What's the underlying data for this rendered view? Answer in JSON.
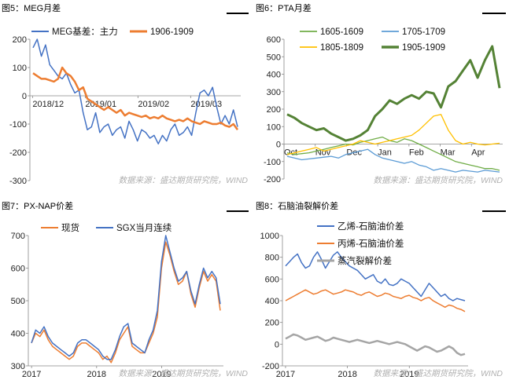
{
  "source_text": "数据来源：盛达期货研究院，WIND",
  "panels": [
    {
      "title": "图5：MEG月差",
      "chart_data": {
        "type": "line",
        "ylim": [
          -300,
          200
        ],
        "yticks": [
          "200",
          "100",
          "0",
          "-100",
          "-200",
          "-300"
        ],
        "xticks": [
          "2018/12",
          "2019/01",
          "2019/02",
          "2019/03"
        ],
        "legend": "top",
        "series": [
          {
            "name": "MEG基差：主力",
            "color": "#4472c4",
            "values": [
              170,
              200,
              140,
              180,
              110,
              90,
              70,
              60,
              80,
              40,
              10,
              20,
              -60,
              -120,
              -110,
              -60,
              -130,
              -110,
              -100,
              -140,
              -120,
              -110,
              -150,
              -90,
              -120,
              -160,
              -120,
              -130,
              -150,
              -140,
              -170,
              -140,
              -160,
              -120,
              -100,
              -140,
              -130,
              -110,
              -140,
              -60,
              10,
              20,
              0,
              30,
              -40,
              -100,
              -70,
              -100,
              -50,
              -110
            ]
          },
          {
            "name": "1906-1909",
            "color": "#ed7d31",
            "values": [
              80,
              70,
              60,
              60,
              55,
              50,
              60,
              100,
              80,
              70,
              50,
              20,
              30,
              -10,
              -20,
              -30,
              -40,
              -50,
              -40,
              -50,
              -60,
              -50,
              -70,
              -60,
              -65,
              -70,
              -75,
              -70,
              -80,
              -75,
              -80,
              -70,
              -80,
              -85,
              -90,
              -85,
              -90,
              -80,
              -90,
              -95,
              -100,
              -90,
              -95,
              -100,
              -100,
              -95,
              -105,
              -110,
              -100,
              -120
            ]
          }
        ]
      }
    },
    {
      "title": "图6：PTA月差",
      "chart_data": {
        "type": "line",
        "ylim": [
          -200,
          600
        ],
        "yticks": [
          "600",
          "500",
          "400",
          "300",
          "200",
          "100",
          "0",
          "-100",
          "-200"
        ],
        "xticks": [
          "Oct",
          "Nov",
          "Dec",
          "Jan",
          "Feb",
          "Mar",
          "Apr"
        ],
        "legend": "top",
        "series": [
          {
            "name": "1605-1609",
            "color": "#70ad47",
            "values": [
              -50,
              -60,
              -55,
              -50,
              -40,
              -30,
              -20,
              -10,
              0,
              -5,
              10,
              20,
              30,
              40,
              20,
              10,
              30,
              20,
              0,
              -20,
              -40,
              -60,
              -80,
              -100,
              -110,
              -120,
              -130,
              -140,
              -140,
              -150
            ]
          },
          {
            "name": "1705-1709",
            "color": "#5b9bd5",
            "values": [
              -70,
              -80,
              -90,
              -85,
              -80,
              -75,
              -70,
              -80,
              -60,
              -50,
              -40,
              -30,
              -60,
              -80,
              -90,
              -100,
              -110,
              -100,
              -120,
              -130,
              -150,
              -140,
              -150,
              -160,
              -150,
              -155,
              -160,
              -150,
              -155,
              -160
            ]
          },
          {
            "name": "1805-1809",
            "color": "#ffc000",
            "values": [
              -60,
              -50,
              -40,
              -30,
              -20,
              -40,
              -30,
              -20,
              -10,
              0,
              20,
              10,
              0,
              10,
              20,
              30,
              40,
              50,
              80,
              120,
              160,
              170,
              80,
              20,
              0,
              10,
              0,
              -5,
              0,
              5
            ]
          },
          {
            "name": "1905-1909",
            "color": "#548235",
            "values": [
              170,
              150,
              120,
              100,
              80,
              90,
              60,
              40,
              20,
              30,
              50,
              80,
              160,
              200,
              250,
              230,
              260,
              280,
              260,
              300,
              290,
              210,
              330,
              360,
              420,
              480,
              380,
              480,
              560,
              320
            ]
          }
        ]
      }
    },
    {
      "title": "图7：PX-NAP价差",
      "chart_data": {
        "type": "line",
        "ylim": [
          300,
          700
        ],
        "yticks": [
          "700",
          "600",
          "500",
          "400",
          "300"
        ],
        "xticks": [
          "2017",
          "2018",
          "2019"
        ],
        "legend": "top",
        "series": [
          {
            "name": "现货",
            "color": "#ed7d31",
            "values": [
              370,
              400,
              390,
              410,
              380,
              360,
              350,
              340,
              330,
              320,
              330,
              360,
              370,
              370,
              360,
              350,
              340,
              320,
              330,
              310,
              340,
              380,
              400,
              420,
              360,
              350,
              340,
              340,
              370,
              400,
              450,
              600,
              680,
              640,
              590,
              550,
              560,
              590,
              520,
              480,
              540,
              590,
              560,
              580,
              560,
              470
            ]
          },
          {
            "name": "SGX当月连续",
            "color": "#4472c4",
            "values": [
              370,
              410,
              400,
              420,
              390,
              370,
              360,
              350,
              340,
              330,
              340,
              370,
              380,
              380,
              370,
              360,
              350,
              330,
              320,
              320,
              350,
              390,
              420,
              430,
              370,
              360,
              350,
              340,
              380,
              410,
              470,
              620,
              700,
              650,
              600,
              560,
              570,
              590,
              530,
              490,
              550,
              600,
              570,
              590,
              570,
              490
            ]
          }
        ]
      }
    },
    {
      "title": "图8：石脑油裂解价差",
      "chart_data": {
        "type": "line",
        "ylim": [
          -200,
          1000
        ],
        "yticks": [
          "1000",
          "800",
          "600",
          "400",
          "200",
          "0",
          "-200"
        ],
        "xticks": [
          "2017",
          "2018",
          "2019"
        ],
        "legend": "top",
        "series": [
          {
            "name": "乙烯-石脑油价差",
            "color": "#4472c4",
            "values": [
              720,
              760,
              800,
              830,
              750,
              700,
              720,
              800,
              850,
              780,
              700,
              760,
              820,
              850,
              800,
              760,
              720,
              700,
              680,
              640,
              600,
              620,
              640,
              580,
              560,
              600,
              550,
              540,
              560,
              600,
              580,
              560,
              520,
              480,
              440,
              500,
              560,
              520,
              480,
              440,
              460,
              420,
              400,
              420,
              410,
              400
            ]
          },
          {
            "name": "丙烯-石脑油价差",
            "color": "#ed7d31",
            "values": [
              400,
              420,
              440,
              460,
              480,
              500,
              480,
              460,
              470,
              490,
              500,
              480,
              460,
              470,
              480,
              500,
              490,
              480,
              460,
              450,
              470,
              480,
              460,
              440,
              450,
              470,
              460,
              440,
              430,
              420,
              440,
              450,
              430,
              420,
              400,
              420,
              430,
              400,
              380,
              360,
              340,
              360,
              350,
              330,
              320,
              300
            ]
          },
          {
            "name": "蒸汽裂解价差",
            "color": "#a5a5a5",
            "values": [
              50,
              70,
              90,
              80,
              60,
              40,
              50,
              60,
              70,
              50,
              30,
              40,
              60,
              50,
              40,
              30,
              20,
              30,
              40,
              30,
              20,
              10,
              20,
              30,
              20,
              10,
              0,
              10,
              20,
              10,
              0,
              -20,
              -40,
              -60,
              -40,
              -20,
              -30,
              -50,
              -70,
              -60,
              -40,
              -20,
              -40,
              -80,
              -100,
              -90
            ]
          }
        ]
      }
    }
  ]
}
